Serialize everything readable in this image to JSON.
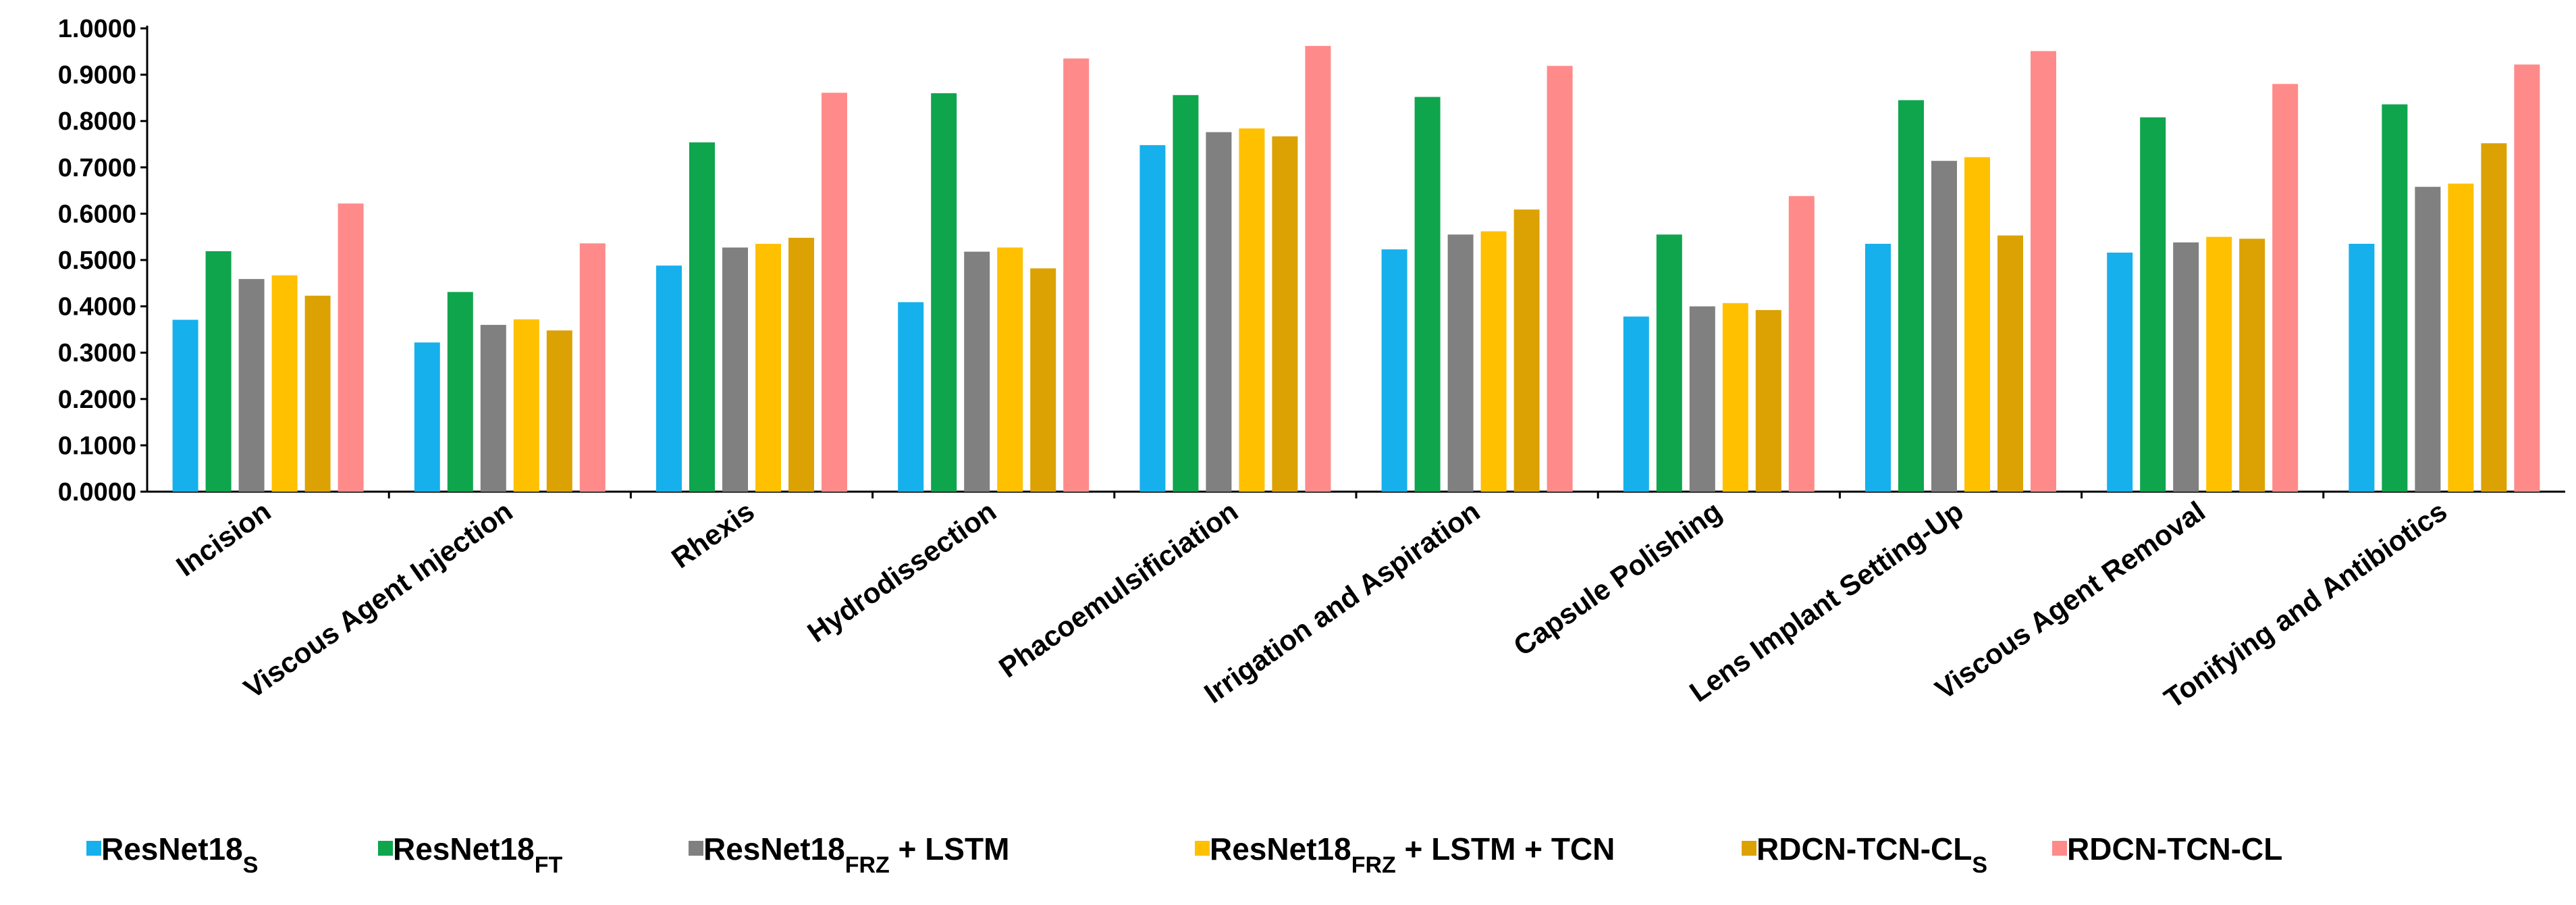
{
  "chart_data": {
    "type": "bar",
    "title": "",
    "xlabel": "",
    "ylabel": "",
    "ylim": [
      0,
      1
    ],
    "yticks": [
      "0.0000",
      "0.1000",
      "0.2000",
      "0.3000",
      "0.4000",
      "0.5000",
      "0.6000",
      "0.7000",
      "0.8000",
      "0.9000",
      "1.0000"
    ],
    "grid": false,
    "legend_position": "bottom",
    "categories": [
      "Incision",
      "Viscous Agent Injection",
      "Rhexis",
      "Hydrodissection",
      "Phacoemulsificiation",
      "Irrigation and Aspiration",
      "Capsule Polishing",
      "Lens Implant Setting-Up",
      "Viscous Agent Removal",
      "Tonifying and Antibiotics"
    ],
    "series": [
      {
        "name": "ResNet18",
        "sub": "S",
        "suffix": "",
        "color": "#16b0ec",
        "values": [
          0.371,
          0.322,
          0.488,
          0.409,
          0.748,
          0.523,
          0.378,
          0.535,
          0.516,
          0.535
        ]
      },
      {
        "name": "ResNet18",
        "sub": "FT",
        "suffix": "",
        "color": "#0fa54d",
        "values": [
          0.519,
          0.431,
          0.754,
          0.86,
          0.856,
          0.852,
          0.555,
          0.845,
          0.808,
          0.836
        ]
      },
      {
        "name": "ResNet18",
        "sub": "FRZ",
        "suffix": " + LSTM",
        "color": "#808080",
        "values": [
          0.459,
          0.36,
          0.527,
          0.518,
          0.776,
          0.555,
          0.4,
          0.714,
          0.538,
          0.658
        ]
      },
      {
        "name": "ResNet18",
        "sub": "FRZ",
        "suffix": " + LSTM + TCN",
        "color": "#ffc000",
        "values": [
          0.467,
          0.372,
          0.535,
          0.527,
          0.784,
          0.562,
          0.407,
          0.722,
          0.55,
          0.665
        ]
      },
      {
        "name": "RDCN-TCN-CL",
        "sub": "S",
        "suffix": "",
        "color": "#dca204",
        "values": [
          0.423,
          0.348,
          0.548,
          0.482,
          0.767,
          0.609,
          0.392,
          0.553,
          0.546,
          0.752
        ]
      },
      {
        "name": "RDCN-TCN-CL",
        "sub": "",
        "suffix": "",
        "color": "#ff8a8a",
        "values": [
          0.622,
          0.536,
          0.861,
          0.935,
          0.962,
          0.919,
          0.638,
          0.951,
          0.88,
          0.922
        ]
      }
    ]
  }
}
